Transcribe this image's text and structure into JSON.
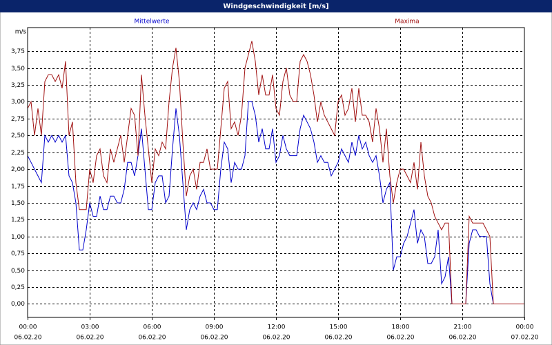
{
  "chart_data": {
    "type": "line",
    "title": "Windgeschwindigkeit [m/s]",
    "y_unit": "m/s",
    "grid": true,
    "xlim": [
      0,
      1440
    ],
    "ylim": [
      -0.2,
      4.1
    ],
    "xticks": [
      {
        "value": 0,
        "label": "00:00",
        "date": "06.02.20"
      },
      {
        "value": 180,
        "label": "03:00",
        "date": "06.02.20"
      },
      {
        "value": 360,
        "label": "06:00",
        "date": "06.02.20"
      },
      {
        "value": 540,
        "label": "09:00",
        "date": "06.02.20"
      },
      {
        "value": 720,
        "label": "12:00",
        "date": "06.02.20"
      },
      {
        "value": 900,
        "label": "15:00",
        "date": "06.02.20"
      },
      {
        "value": 1080,
        "label": "18:00",
        "date": "06.02.20"
      },
      {
        "value": 1260,
        "label": "21:00",
        "date": "06.02.20"
      },
      {
        "value": 1440,
        "label": "00:00",
        "date": "07.02.20"
      }
    ],
    "yticks": [
      {
        "value": 0,
        "label": "0,00"
      },
      {
        "value": 0.25,
        "label": "0,25"
      },
      {
        "value": 0.5,
        "label": "0,50"
      },
      {
        "value": 0.75,
        "label": "0,75"
      },
      {
        "value": 1,
        "label": "1,00"
      },
      {
        "value": 1.25,
        "label": "1,25"
      },
      {
        "value": 1.5,
        "label": "1,50"
      },
      {
        "value": 1.75,
        "label": "1,75"
      },
      {
        "value": 2,
        "label": "2,00"
      },
      {
        "value": 2.25,
        "label": "2,25"
      },
      {
        "value": 2.5,
        "label": "2,50"
      },
      {
        "value": 2.75,
        "label": "2,75"
      },
      {
        "value": 3,
        "label": "3,00"
      },
      {
        "value": 3.25,
        "label": "3,25"
      },
      {
        "value": 3.5,
        "label": "3,50"
      },
      {
        "value": 3.75,
        "label": "3,75"
      }
    ],
    "x": [
      0,
      10,
      20,
      30,
      40,
      50,
      60,
      70,
      80,
      90,
      100,
      110,
      120,
      130,
      140,
      150,
      160,
      170,
      180,
      190,
      200,
      210,
      220,
      230,
      240,
      250,
      260,
      270,
      280,
      290,
      300,
      310,
      320,
      330,
      340,
      350,
      360,
      370,
      380,
      390,
      400,
      410,
      420,
      430,
      440,
      450,
      460,
      470,
      480,
      490,
      500,
      510,
      520,
      530,
      540,
      550,
      560,
      570,
      580,
      590,
      600,
      610,
      620,
      630,
      640,
      650,
      660,
      670,
      680,
      690,
      700,
      710,
      720,
      730,
      740,
      750,
      760,
      770,
      780,
      790,
      800,
      810,
      820,
      830,
      840,
      850,
      860,
      870,
      880,
      890,
      900,
      910,
      920,
      930,
      940,
      950,
      960,
      970,
      980,
      990,
      1000,
      1010,
      1020,
      1030,
      1040,
      1050,
      1060,
      1070,
      1080,
      1090,
      1100,
      1110,
      1120,
      1130,
      1140,
      1150,
      1160,
      1170,
      1180,
      1190,
      1200,
      1210,
      1220,
      1230,
      1240,
      1250,
      1260,
      1270,
      1280,
      1290,
      1300,
      1310,
      1320,
      1330,
      1340,
      1350,
      1360,
      1370,
      1380,
      1390,
      1400,
      1410,
      1420,
      1430,
      1440
    ],
    "series": [
      {
        "name": "Mittelwerte",
        "color": "#0000cc",
        "values": [
          2.2,
          2.1,
          2.0,
          1.9,
          1.8,
          2.5,
          2.4,
          2.5,
          2.4,
          2.5,
          2.4,
          2.5,
          1.9,
          1.8,
          1.5,
          0.8,
          0.8,
          1.1,
          1.5,
          1.3,
          1.3,
          1.6,
          1.4,
          1.4,
          1.6,
          1.6,
          1.5,
          1.5,
          1.7,
          2.1,
          2.1,
          1.9,
          2.2,
          2.6,
          2.0,
          1.4,
          1.4,
          1.8,
          1.9,
          1.9,
          1.5,
          1.6,
          2.3,
          2.9,
          2.5,
          1.8,
          1.1,
          1.4,
          1.5,
          1.4,
          1.6,
          1.7,
          1.5,
          1.5,
          1.4,
          1.4,
          2.0,
          2.4,
          2.3,
          1.8,
          2.1,
          2.0,
          2.0,
          2.2,
          3.0,
          3.0,
          2.8,
          2.4,
          2.6,
          2.3,
          2.3,
          2.6,
          2.1,
          2.2,
          2.5,
          2.3,
          2.2,
          2.2,
          2.2,
          2.6,
          2.8,
          2.7,
          2.6,
          2.4,
          2.1,
          2.2,
          2.1,
          2.1,
          1.9,
          2.0,
          2.1,
          2.3,
          2.2,
          2.1,
          2.4,
          2.2,
          2.5,
          2.3,
          2.4,
          2.2,
          2.1,
          2.2,
          1.9,
          1.5,
          1.7,
          1.8,
          0.5,
          0.7,
          0.7,
          0.9,
          1.0,
          1.2,
          1.4,
          0.9,
          1.1,
          1.0,
          0.6,
          0.6,
          0.7,
          1.1,
          0.3,
          0.4,
          0.7,
          0,
          0,
          0,
          0,
          0,
          0.9,
          1.1,
          1.1,
          1.0,
          1.0,
          1.0,
          0.3,
          0,
          0,
          0,
          0,
          0,
          0,
          0,
          0,
          0,
          0
        ]
      },
      {
        "name": "Maxima",
        "color": "#a01010",
        "values": [
          2.9,
          3.0,
          2.5,
          2.9,
          2.5,
          3.3,
          3.4,
          3.4,
          3.3,
          3.4,
          3.2,
          3.6,
          2.5,
          2.7,
          1.8,
          1.4,
          1.4,
          1.4,
          2.0,
          1.8,
          2.2,
          2.3,
          1.9,
          1.8,
          2.3,
          2.1,
          2.3,
          2.5,
          2.1,
          2.5,
          2.9,
          2.8,
          2.2,
          3.4,
          2.8,
          2.3,
          1.8,
          2.3,
          2.2,
          2.4,
          2.3,
          3.0,
          3.5,
          3.8,
          3.3,
          2.4,
          1.6,
          1.9,
          2.0,
          1.7,
          2.1,
          2.1,
          2.3,
          2.0,
          2.0,
          2.0,
          2.6,
          3.2,
          3.3,
          2.6,
          2.7,
          2.5,
          2.8,
          3.5,
          3.7,
          3.9,
          3.6,
          3.1,
          3.4,
          3.1,
          3.1,
          3.4,
          2.9,
          2.8,
          3.3,
          3.5,
          3.1,
          3.0,
          3.0,
          3.6,
          3.7,
          3.6,
          3.4,
          3.1,
          2.7,
          3.0,
          2.8,
          2.7,
          2.6,
          2.5,
          3.0,
          3.1,
          2.8,
          2.9,
          3.2,
          2.7,
          3.2,
          2.8,
          2.8,
          2.7,
          2.4,
          2.9,
          2.6,
          2.1,
          2.6,
          1.9,
          1.5,
          1.8,
          2.0,
          2.0,
          1.9,
          1.8,
          2.1,
          1.7,
          2.4,
          1.9,
          1.6,
          1.5,
          1.3,
          1.2,
          1.1,
          1.2,
          1.2,
          0,
          0,
          0,
          0,
          0,
          1.3,
          1.2,
          1.2,
          1.2,
          1.2,
          1.1,
          1.0,
          0,
          0,
          0,
          0,
          0,
          0,
          0,
          0,
          0,
          0
        ]
      }
    ]
  }
}
